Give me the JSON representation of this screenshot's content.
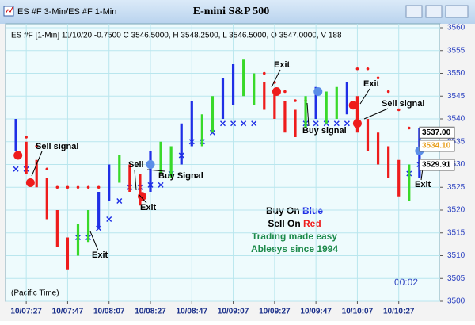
{
  "chart_data": {
    "type": "price-bars",
    "window_title": "ES #F 3-Min/ES #F 1-Min",
    "title": "E-mini S&P 500",
    "info": "ES #F [1-Min] 11/10/20 -0.7500 C 3546.5000, H 3548.2500, L 3546.5000, O 3547.0000, V 188",
    "timezone": "(Pacific Time)",
    "clock": "00:02",
    "palette": {
      "blue": "#1f2fe6",
      "red": "#ee1c1c",
      "green": "#39d92a"
    },
    "x": [
      -5,
      0,
      5,
      10,
      15,
      20,
      25,
      30,
      35,
      40,
      45,
      50,
      55,
      60,
      65,
      70,
      75,
      80,
      85,
      90,
      95,
      100,
      105,
      110,
      115,
      120,
      125,
      130,
      135,
      140,
      145,
      150,
      155,
      160,
      165,
      170,
      175,
      180,
      185,
      190
    ],
    "high": [
      3540,
      3535,
      3531,
      3527,
      3520,
      3514,
      3517,
      3520,
      3524,
      3530,
      3532,
      3530,
      3528,
      3533,
      3535,
      3534,
      3539,
      3544,
      3541,
      3545,
      3549,
      3552,
      3553,
      3550,
      3548,
      3546,
      3544,
      3542,
      3545,
      3547,
      3546,
      3547,
      3548,
      3545,
      3540,
      3537,
      3534,
      3531,
      3530,
      3538
    ],
    "low": [
      3533,
      3528,
      3525,
      3518,
      3512,
      3507,
      3510,
      3513,
      3516,
      3522,
      3526,
      3524,
      3521,
      3524,
      3528,
      3527,
      3530,
      3534,
      3534,
      3537,
      3540,
      3543,
      3545,
      3543,
      3542,
      3540,
      3537,
      3536,
      3538,
      3540,
      3539,
      3540,
      3541,
      3537,
      3533,
      3530,
      3527,
      3523,
      3522,
      3527
    ],
    "bar_colors": [
      "blue",
      "red",
      "red",
      "red",
      "red",
      "red",
      "green",
      "green",
      "blue",
      "blue",
      "green",
      "red",
      "red",
      "blue",
      "green",
      "green",
      "blue",
      "blue",
      "green",
      "green",
      "blue",
      "blue",
      "green",
      "green",
      "red",
      "red",
      "red",
      "red",
      "green",
      "blue",
      "green",
      "green",
      "blue",
      "red",
      "red",
      "red",
      "red",
      "red",
      "green",
      "blue"
    ],
    "red_stops": [
      null,
      3536,
      3534,
      3529,
      3525,
      3525,
      3525,
      3525,
      3525,
      null,
      null,
      null,
      null,
      null,
      null,
      null,
      null,
      null,
      null,
      null,
      null,
      null,
      null,
      null,
      3550,
      3548,
      3546,
      3544,
      3544,
      null,
      null,
      null,
      null,
      3551,
      3551,
      3549,
      3546,
      3542,
      3538,
      null
    ],
    "blue_stops": [
      3529,
      3529,
      null,
      null,
      null,
      null,
      3514,
      3514,
      3516,
      3518,
      3522,
      3525,
      3525,
      3525.5,
      3525.5,
      3528,
      3532,
      3535,
      3535,
      3537,
      3539,
      3539,
      3539,
      3539,
      null,
      null,
      null,
      null,
      3539,
      3539,
      3539,
      3539,
      3539,
      null,
      null,
      null,
      null,
      null,
      3528,
      3530
    ],
    "signals": [
      {
        "x": -4,
        "y": 3532,
        "color": "red"
      },
      {
        "x": 2,
        "y": 3526,
        "color": "red"
      },
      {
        "x": 56,
        "y": 3523,
        "color": "red"
      },
      {
        "x": 60,
        "y": 3530,
        "color": "blue"
      },
      {
        "x": 121,
        "y": 3546,
        "color": "red"
      },
      {
        "x": 141,
        "y": 3546,
        "color": "blue"
      },
      {
        "x": 158,
        "y": 3543,
        "color": "red"
      },
      {
        "x": 160,
        "y": 3539,
        "color": "red"
      },
      {
        "x": 190,
        "y": 3533,
        "color": "blue"
      }
    ],
    "annotations": [
      "Sell signal",
      "Exit",
      "Sell",
      "Exit",
      "Buy Signal",
      "Exit",
      "Buy signal",
      "Exit",
      "Sell signal",
      "Exit"
    ],
    "notes": {
      "buy_prefix": "Buy On",
      "buy_word": "Blue",
      "sell_prefix": "Sell On",
      "sell_word": "Red",
      "tagline": "Trading made easy",
      "company": "Ablesys since 1994"
    },
    "price_labels": [
      {
        "value": 3537.0,
        "label": "3537.00",
        "color": "#000000"
      },
      {
        "value": 3534.1,
        "label": "3534.10",
        "color": "#e8a020"
      },
      {
        "value": 3529.91,
        "label": "3529.91",
        "color": "#000000"
      }
    ],
    "xlim": [
      -10,
      200
    ],
    "xticks": [
      {
        "value": 0,
        "label": "10/07:27"
      },
      {
        "value": 20,
        "label": "10/07:47"
      },
      {
        "value": 40,
        "label": "10/08:07"
      },
      {
        "value": 60,
        "label": "10/08:27"
      },
      {
        "value": 80,
        "label": "10/08:47"
      },
      {
        "value": 100,
        "label": "10/09:07"
      },
      {
        "value": 120,
        "label": "10/09:27"
      },
      {
        "value": 140,
        "label": "10/09:47"
      },
      {
        "value": 160,
        "label": "10/10:07"
      },
      {
        "value": 180,
        "label": "10/10:27"
      }
    ],
    "ylim": [
      3500,
      3560
    ],
    "yticks": [
      3500,
      3505,
      3510,
      3515,
      3520,
      3525,
      3530,
      3535,
      3540,
      3545,
      3550,
      3555,
      3560
    ],
    "grid": true
  }
}
